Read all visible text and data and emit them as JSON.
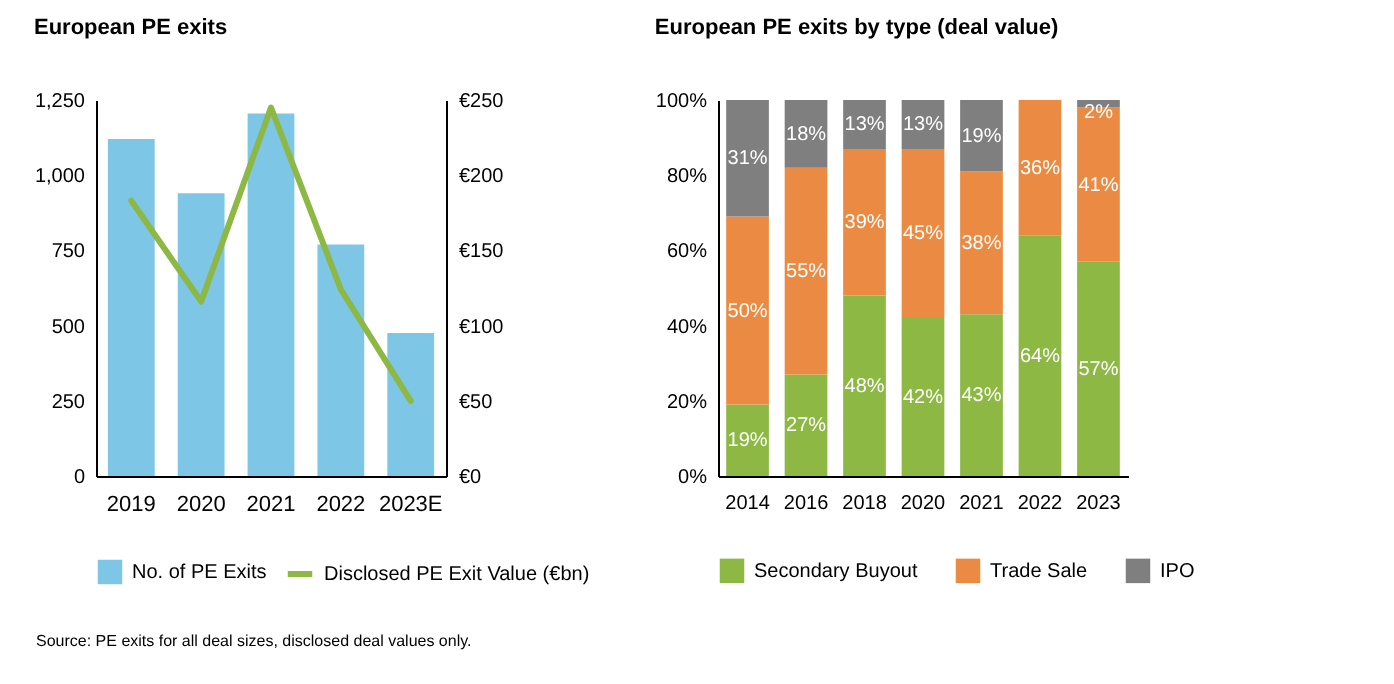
{
  "chart_data": [
    {
      "type": "bar",
      "title": "European PE exits",
      "categories": [
        "2019",
        "2020",
        "2021",
        "2022",
        "2023E"
      ],
      "series": [
        {
          "name": "No. of PE Exits",
          "type": "bar",
          "color": "#7ec6e6",
          "values": [
            1120,
            940,
            1205,
            770,
            475
          ]
        },
        {
          "name": "Disclosed PE Exit Value (€bn)",
          "type": "line",
          "axis": "y2",
          "color": "#8cb843",
          "values": [
            183,
            116,
            245,
            124,
            50
          ]
        }
      ],
      "ylim": [
        0,
        1250
      ],
      "yticks": [
        {
          "value": 0,
          "label": "0"
        },
        {
          "value": 250,
          "label": "250"
        },
        {
          "value": 500,
          "label": "500"
        },
        {
          "value": 750,
          "label": "750"
        },
        {
          "value": 1000,
          "label": "1,000"
        },
        {
          "value": 1250,
          "label": "1,250"
        }
      ],
      "y2lim": [
        0,
        250
      ],
      "y2ticks": [
        {
          "value": 0,
          "label": "€0"
        },
        {
          "value": 50,
          "label": "€50"
        },
        {
          "value": 100,
          "label": "€100"
        },
        {
          "value": 150,
          "label": "€150"
        },
        {
          "value": 200,
          "label": "€200"
        },
        {
          "value": 250,
          "label": "€250"
        }
      ],
      "grid": false,
      "legend": "bottom",
      "annotations": [
        "Source:  PE exits for all deal sizes, disclosed deal values only."
      ]
    },
    {
      "type": "bar",
      "title": "European PE exits by type (deal value)",
      "categories": [
        "2014",
        "2016",
        "2018",
        "2020",
        "2021",
        "2022",
        "2023"
      ],
      "stacked": true,
      "series": [
        {
          "name": "Secondary Buyout",
          "color": "#8cb843",
          "values": [
            19,
            27,
            48,
            42,
            43,
            64,
            57
          ],
          "value_labels": [
            "19%",
            "27%",
            "48%",
            "42%",
            "43%",
            "64%",
            "57%"
          ]
        },
        {
          "name": "Trade Sale",
          "color": "#eb8b43",
          "values": [
            50,
            55,
            39,
            45,
            38,
            36,
            41
          ],
          "value_labels": [
            "50%",
            "55%",
            "39%",
            "45%",
            "38%",
            "36%",
            "41%"
          ]
        },
        {
          "name": "IPO",
          "color": "#7f7f7f",
          "values": [
            31,
            18,
            13,
            13,
            19,
            null,
            2
          ],
          "value_labels": [
            "31%",
            "18%",
            "13%",
            "13%",
            "19%",
            null,
            "2%"
          ]
        }
      ],
      "ylim": [
        0,
        100
      ],
      "yticks": [
        {
          "value": 0,
          "label": "0%"
        },
        {
          "value": 20,
          "label": "20%"
        },
        {
          "value": 40,
          "label": "40%"
        },
        {
          "value": 60,
          "label": "60%"
        },
        {
          "value": 80,
          "label": "80%"
        },
        {
          "value": 100,
          "label": "100%"
        }
      ],
      "grid": false,
      "legend": "bottom"
    }
  ]
}
